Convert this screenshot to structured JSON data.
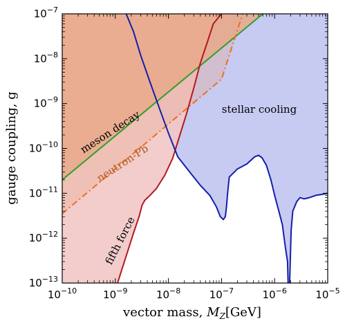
{
  "chart_data": {
    "type": "area",
    "xlabel": "vector mass, M_Z[GeV]",
    "xlabel_main": "vector mass, ",
    "xlabel_italic": "M",
    "xlabel_sub": "Z",
    "xlabel_unit": "[GeV]",
    "ylabel": "gauge coupling, g",
    "x_scale": "log",
    "y_scale": "log",
    "xlim": [
      1e-10,
      1e-05
    ],
    "ylim": [
      1e-13,
      1e-07
    ],
    "x_ticks": [
      {
        "base": "10",
        "exp": "−10",
        "value": 1e-10
      },
      {
        "base": "10",
        "exp": "−9",
        "value": 1e-09
      },
      {
        "base": "10",
        "exp": "−8",
        "value": 1e-08
      },
      {
        "base": "10",
        "exp": "−7",
        "value": 1e-07
      },
      {
        "base": "10",
        "exp": "−6",
        "value": 1e-06
      },
      {
        "base": "10",
        "exp": "−5",
        "value": 1e-05
      }
    ],
    "y_ticks": [
      {
        "base": "10",
        "exp": "−13",
        "value": 1e-13
      },
      {
        "base": "10",
        "exp": "−12",
        "value": 1e-12
      },
      {
        "base": "10",
        "exp": "−11",
        "value": 1e-11
      },
      {
        "base": "10",
        "exp": "−10",
        "value": 1e-10
      },
      {
        "base": "10",
        "exp": "−9",
        "value": 1e-09
      },
      {
        "base": "10",
        "exp": "−8",
        "value": 1e-08
      },
      {
        "base": "10",
        "exp": "−7",
        "value": 1e-07
      }
    ],
    "grid": false,
    "series": [
      {
        "key": "fifth",
        "name": "fifth force",
        "color": "#b3181d",
        "fill": "#f2c6c6",
        "fill_opacity": 0.9,
        "line_style": "solid",
        "exclusion_side": "left",
        "x": [
          1.1e-09,
          1.6e-09,
          2.2e-09,
          2.8e-09,
          3.2e-09,
          3.6e-09,
          4.5e-09,
          6e-09,
          8.5e-09,
          1.2e-08,
          1.6e-08,
          2.2e-08,
          3e-08,
          4e-08,
          5.5e-08,
          7e-08,
          1e-07
        ],
        "y": [
          1e-13,
          4e-13,
          1.3e-12,
          3e-12,
          5.5e-12,
          7e-12,
          9e-12,
          1.3e-11,
          2.5e-11,
          6e-11,
          1.8e-10,
          6e-10,
          2.2e-09,
          8e-09,
          2.5e-08,
          6e-08,
          1e-07
        ],
        "label": "fifth force",
        "label_color": "#000000"
      },
      {
        "key": "meson",
        "name": "meson decay",
        "color": "#2ca02c",
        "fill": "#e9a98b",
        "fill_opacity": 0.85,
        "line_style": "solid",
        "exclusion_side": "above",
        "x": [
          1e-10,
          6e-07
        ],
        "y": [
          2e-11,
          1e-07
        ],
        "label": "meson decay",
        "label_color": "#000000"
      },
      {
        "key": "neutron",
        "name": "neutron-Pb",
        "color": "#e8711f",
        "fill": "#e9a98b",
        "fill_opacity": 0.35,
        "line_style": "dashdot",
        "exclusion_side": "above",
        "x": [
          1e-10,
          1e-07,
          2.5e-07
        ],
        "y": [
          3.5e-12,
          3.5e-09,
          1e-07
        ],
        "label": "neutron-Pb",
        "label_color": "#b35a1a"
      },
      {
        "key": "stellar",
        "name": "stellar cooling",
        "color": "#1020a8",
        "fill": "#b4b8ec",
        "fill_opacity": 0.75,
        "line_style": "solid",
        "exclusion_side": "above",
        "x": [
          1.6e-09,
          2.2e-09,
          3e-09,
          4.5e-09,
          7e-09,
          1e-08,
          1.5e-08,
          2.5e-08,
          4e-08,
          6e-08,
          8e-08,
          9.5e-08,
          1.08e-07,
          1.18e-07,
          1.24e-07,
          1.3e-07,
          1.4e-07,
          2e-07,
          3e-07,
          4.2e-07,
          5e-07,
          5.8e-07,
          7e-07,
          8.5e-07,
          1e-06,
          1.2e-06,
          1.4e-06,
          1.6e-06,
          1.75e-06,
          1.85e-06,
          1.95e-06,
          2.05e-06,
          2.2e-06,
          2.6e-06,
          3e-06,
          3.6e-06,
          4.5e-06,
          6e-06,
          8e-06,
          1e-05
        ],
        "y": [
          1e-07,
          4e-08,
          1.2e-08,
          3e-09,
          7e-10,
          2.2e-10,
          6.5e-11,
          3e-11,
          1.5e-11,
          9e-12,
          5e-12,
          3e-12,
          2.6e-12,
          3e-12,
          5e-12,
          1e-11,
          2.3e-11,
          3.5e-11,
          4.5e-11,
          6.5e-11,
          7e-11,
          6.2e-11,
          4.2e-11,
          2e-11,
          9e-12,
          4e-12,
          2e-12,
          6e-13,
          3e-13,
          2.5e-14,
          2e-13,
          1.5e-12,
          4e-12,
          6.5e-12,
          8e-12,
          7.5e-12,
          8e-12,
          9e-12,
          9.5e-12,
          1e-11
        ],
        "label": "stellar cooling",
        "label_color": "#000000"
      }
    ]
  }
}
